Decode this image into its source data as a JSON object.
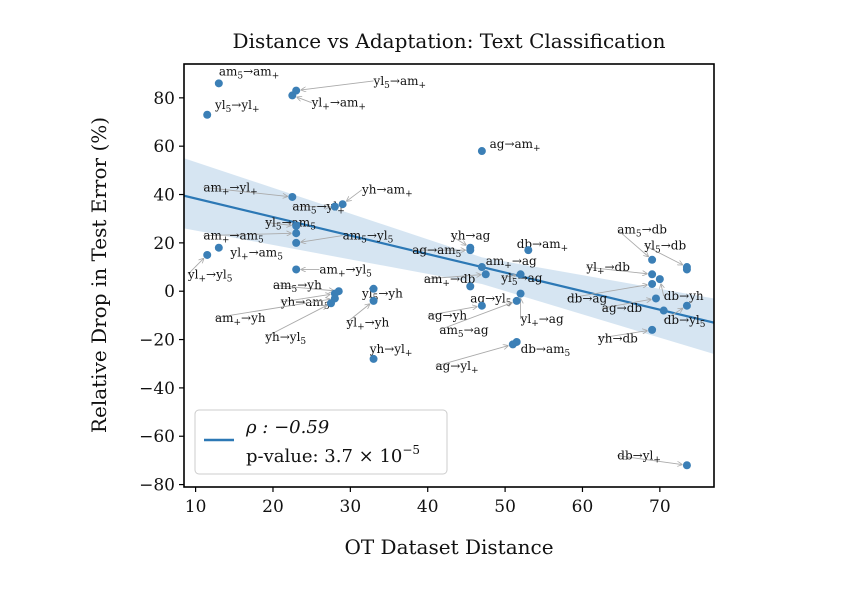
{
  "chart_data": {
    "type": "scatter",
    "title": "Distance vs Adaptation: Text Classification",
    "xlabel": "OT Dataset Distance",
    "ylabel": "Relative Drop in Test Error (%)",
    "xlim": [
      8.5,
      77
    ],
    "ylim": [
      -81,
      94
    ],
    "xticks": [
      10,
      20,
      30,
      40,
      50,
      60,
      70
    ],
    "yticks": [
      -80,
      -60,
      -40,
      -20,
      0,
      20,
      40,
      60,
      80
    ],
    "xtick_labels": [
      "10",
      "20",
      "30",
      "40",
      "50",
      "60",
      "70"
    ],
    "ytick_labels": [
      "−80",
      "−60",
      "−40",
      "−20",
      "0",
      "20",
      "40",
      "60",
      "80"
    ],
    "fit_line": {
      "x0": 8.5,
      "y0": 39.5,
      "x1": 77,
      "y1": -13
    },
    "ci_band": {
      "x0": 8.5,
      "upper0": 55,
      "lower0": 26,
      "xc": 47,
      "upperc": 14,
      "lowerc": 3,
      "x1": 77,
      "upper1": -3,
      "lower1": -26
    },
    "colors": {
      "point": "#3b7fb6",
      "line": "#2c78b5",
      "band": "#cfe1f0",
      "arrow": "#aaaaaa"
    },
    "legend": {
      "rho": "ρ : −0.59",
      "pvalue": "p-value: 3.7 × 10",
      "exponent": "−5",
      "position": "lower-left"
    },
    "points": [
      {
        "x": 13,
        "y": 86,
        "label": "am5→am+",
        "lx": 13,
        "ly": 91
      },
      {
        "x": 23,
        "y": 83,
        "label": "yl5→am+",
        "lx": 33,
        "ly": 87
      },
      {
        "x": 22.5,
        "y": 81,
        "label": "yl+→am+",
        "lx": 25,
        "ly": 78
      },
      {
        "x": 11.5,
        "y": 73,
        "label": "yl5→yl+",
        "lx": 12.5,
        "ly": 77
      },
      {
        "x": 47,
        "y": 58,
        "label": "ag→am+",
        "lx": 48,
        "ly": 61
      },
      {
        "x": 22.5,
        "y": 39,
        "label": "am+→yl+",
        "lx": 11,
        "ly": 43
      },
      {
        "x": 29,
        "y": 36,
        "label": "yh→am+",
        "lx": 31.5,
        "ly": 42
      },
      {
        "x": 28,
        "y": 35,
        "label": "am5→yl+",
        "lx": 22.5,
        "ly": 35
      },
      {
        "x": 23,
        "y": 27,
        "label": "yl5→am5",
        "lx": 19,
        "ly": 28.5
      },
      {
        "x": 23,
        "y": 24,
        "label": "am+→am5",
        "lx": 11,
        "ly": 23
      },
      {
        "x": 23,
        "y": 20,
        "label": "am5→yl5",
        "lx": 29,
        "ly": 23
      },
      {
        "x": 13,
        "y": 18,
        "label": "yl+→am5",
        "lx": 14.5,
        "ly": 16
      },
      {
        "x": 11.5,
        "y": 15,
        "label": "yl+→yl5",
        "lx": 9,
        "ly": 7
      },
      {
        "x": 23,
        "y": 9,
        "label": "am+→yl5",
        "lx": 26,
        "ly": 9
      },
      {
        "x": 28.5,
        "y": 0,
        "label": "am5→yh",
        "lx": 20,
        "ly": 2.5
      },
      {
        "x": 28,
        "y": -1,
        "label": "yh→am5",
        "lx": 21,
        "ly": -4.5
      },
      {
        "x": 33,
        "y": 1,
        "label": "yl5→yh",
        "lx": 31.5,
        "ly": -1
      },
      {
        "x": 33,
        "y": -4,
        "label": "yl+→yh",
        "lx": 29.5,
        "ly": -13
      },
      {
        "x": 28,
        "y": -3,
        "label": "am+→yh",
        "lx": 12.5,
        "ly": -11
      },
      {
        "x": 27.5,
        "y": -5,
        "label": "yh→yl5",
        "lx": 19,
        "ly": -19
      },
      {
        "x": 33,
        "y": -28,
        "label": "yh→yl+",
        "lx": 32.5,
        "ly": -24
      },
      {
        "x": 45.5,
        "y": 18,
        "label": "yh→ag",
        "lx": 43,
        "ly": 23
      },
      {
        "x": 45.5,
        "y": 17,
        "label": "ag→am5",
        "lx": 38,
        "ly": 17
      },
      {
        "x": 47,
        "y": 10,
        "label": "am+→ag",
        "lx": 47.5,
        "ly": 12.5
      },
      {
        "x": 47.5,
        "y": 7,
        "label": "am+→db",
        "lx": 39.5,
        "ly": 5
      },
      {
        "x": 52,
        "y": 7,
        "label": "yl5→ag",
        "lx": 49.5,
        "ly": 5.5
      },
      {
        "x": 45.5,
        "y": 2,
        "label": "ag→yl5",
        "lx": 45.5,
        "ly": -3
      },
      {
        "x": 47,
        "y": -6,
        "label": "ag→yh",
        "lx": 40,
        "ly": -10
      },
      {
        "x": 51.5,
        "y": -4,
        "label": "am5→ag",
        "lx": 41.5,
        "ly": -16
      },
      {
        "x": 52,
        "y": -1,
        "label": "yl+→ag",
        "lx": 52,
        "ly": -11.5
      },
      {
        "x": 51.5,
        "y": -21,
        "label": "db→am5",
        "lx": 52,
        "ly": -24
      },
      {
        "x": 51,
        "y": -22,
        "label": "ag→yl+",
        "lx": 41,
        "ly": -31
      },
      {
        "x": 53,
        "y": 17,
        "label": "db→am+",
        "lx": 51.5,
        "ly": 19.5
      },
      {
        "x": 69,
        "y": 13,
        "label": "am5→db",
        "lx": 64.5,
        "ly": 25.5
      },
      {
        "x": 73.5,
        "y": 10,
        "label": "yl5→db",
        "lx": 68,
        "ly": 19
      },
      {
        "x": 69,
        "y": 7,
        "label": "yl+→db",
        "lx": 60.5,
        "ly": 10
      },
      {
        "x": 70,
        "y": 5,
        "label": "db→yh",
        "lx": 70.5,
        "ly": -2
      },
      {
        "x": 69,
        "y": 3,
        "label": "db→ag",
        "lx": 58,
        "ly": -3
      },
      {
        "x": 69.5,
        "y": -3,
        "label": "ag→db",
        "lx": 62.5,
        "ly": -7
      },
      {
        "x": 73.5,
        "y": -6,
        "label": "db→yl5",
        "lx": 70.5,
        "ly": -12
      },
      {
        "x": 69,
        "y": -16,
        "label": "yh→db",
        "lx": 62,
        "ly": -19.5
      },
      {
        "x": 73.5,
        "y": 9,
        "label": "",
        "lx": 73.5,
        "ly": 9
      },
      {
        "x": 70.5,
        "y": -8,
        "label": "",
        "lx": 70.5,
        "ly": -8
      },
      {
        "x": 73.5,
        "y": -72,
        "label": "db→yl+",
        "lx": 64.5,
        "ly": -68
      }
    ]
  }
}
